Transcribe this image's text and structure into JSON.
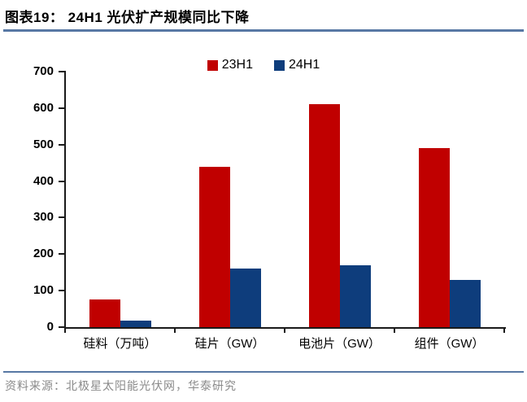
{
  "header": {
    "title": "图表19： 24H1 光伏扩产规模同比下降"
  },
  "chart_data": {
    "type": "bar",
    "title": "24H1 光伏扩产规模同比下降",
    "categories": [
      "硅料（万吨）",
      "硅片（GW）",
      "电池片（GW）",
      "组件（GW）"
    ],
    "series": [
      {
        "name": "23H1",
        "color": "#C00000",
        "values": [
          75,
          440,
          610,
          490
        ]
      },
      {
        "name": "24H1",
        "color": "#0E3D7C",
        "values": [
          17,
          160,
          170,
          130
        ]
      }
    ],
    "xlabel": "",
    "ylabel": "",
    "ylim": [
      0,
      700
    ],
    "yticks": [
      0,
      100,
      200,
      300,
      400,
      500,
      600,
      700
    ],
    "grid": false,
    "legend_position": "top-center"
  },
  "footer": {
    "source": "资料来源：北极星太阳能光伏网，华泰研究"
  },
  "colors": {
    "bar_23h1": "#C00000",
    "bar_24h1": "#0E3D7C",
    "rule": "#5878A4",
    "axis": "#1A1A1A",
    "footer_text": "#8A8A8A"
  }
}
